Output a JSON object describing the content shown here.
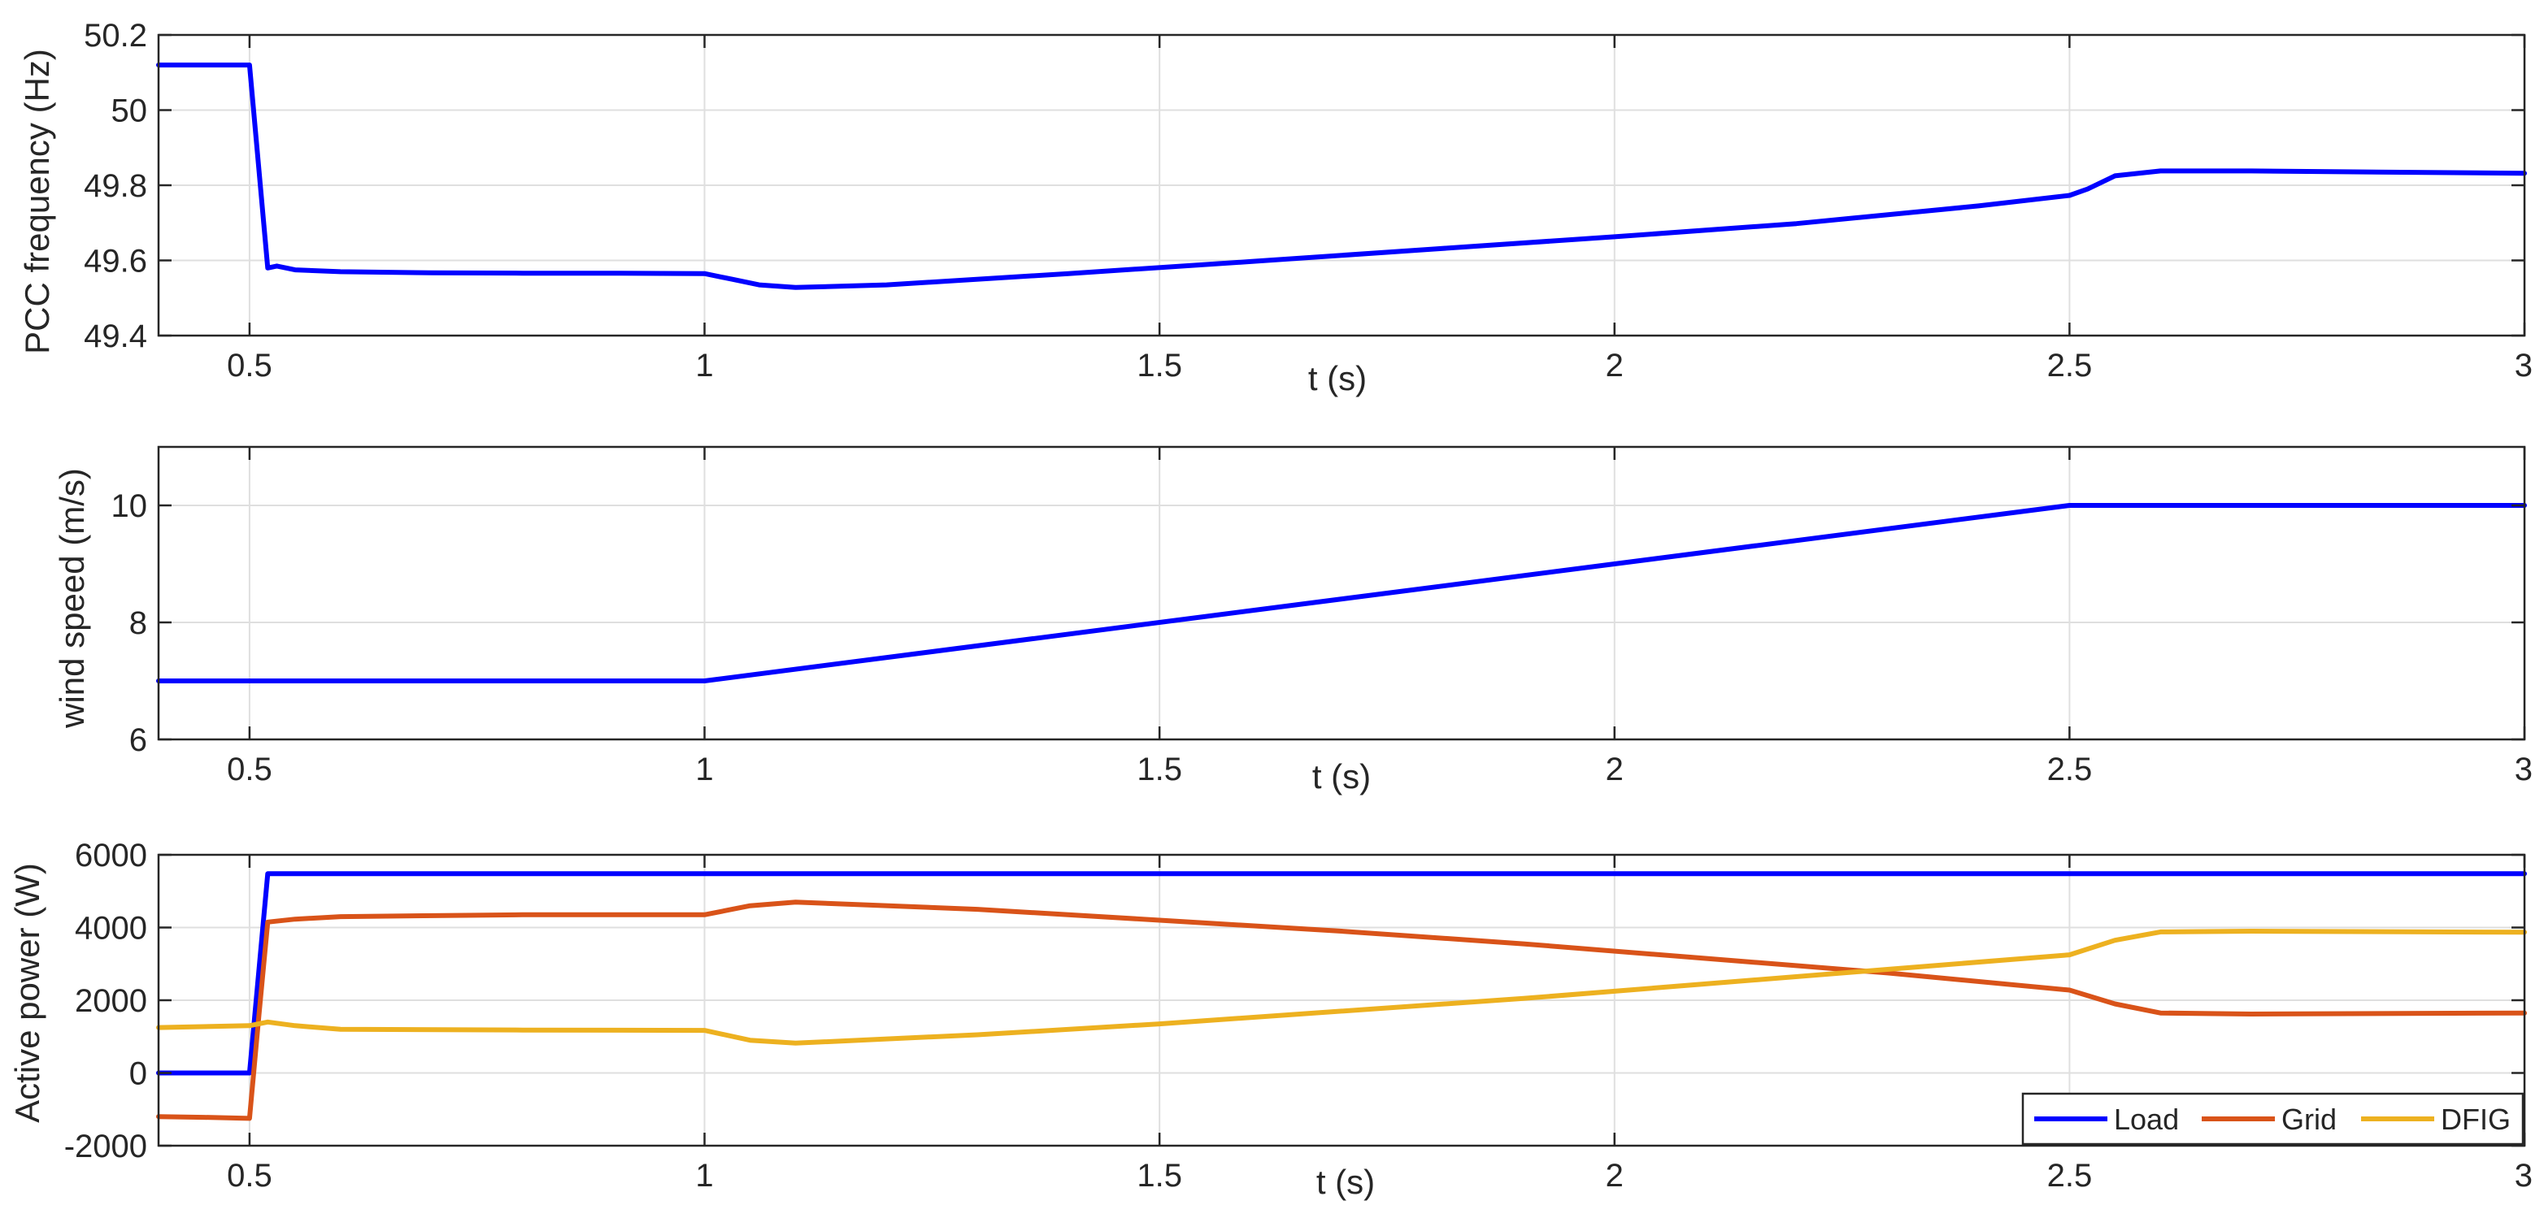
{
  "chart_data": [
    {
      "type": "line",
      "xlabel": "t (s)",
      "ylabel": "PCC frequency (Hz)",
      "xlim": [
        0.4,
        3
      ],
      "ylim": [
        49.4,
        50.2
      ],
      "xticks": [
        0.5,
        1,
        1.5,
        2,
        2.5,
        3
      ],
      "xtick_labels": [
        "0.5",
        "1",
        "1.5",
        "2",
        "2.5",
        "3"
      ],
      "yticks": [
        49.4,
        49.6,
        49.8,
        50,
        50.2
      ],
      "ytick_labels": [
        "49.4",
        "49.6",
        "49.8",
        "50",
        "50.2"
      ],
      "grid": true,
      "series": [
        {
          "color": "#0000ff",
          "x": [
            0.4,
            0.5,
            0.51,
            0.52,
            0.53,
            0.55,
            0.6,
            0.7,
            0.8,
            0.9,
            1.0,
            1.03,
            1.06,
            1.1,
            1.2,
            1.4,
            1.6,
            1.8,
            2.0,
            2.2,
            2.4,
            2.5,
            2.52,
            2.55,
            2.6,
            2.7,
            2.8,
            3.0
          ],
          "y": [
            50.12,
            50.12,
            49.85,
            49.58,
            49.585,
            49.575,
            49.57,
            49.567,
            49.566,
            49.566,
            49.565,
            49.55,
            49.535,
            49.528,
            49.535,
            49.565,
            49.597,
            49.63,
            49.663,
            49.698,
            49.745,
            49.773,
            49.79,
            49.825,
            49.838,
            49.838,
            49.836,
            49.832
          ]
        }
      ]
    },
    {
      "type": "line",
      "xlabel": "t (s)",
      "ylabel": "wind speed (m/s)",
      "xlim": [
        0.4,
        3
      ],
      "ylim": [
        6,
        11
      ],
      "xticks": [
        0.5,
        1,
        1.5,
        2,
        2.5,
        3
      ],
      "xtick_labels": [
        "0.5",
        "1",
        "1.5",
        "2",
        "2.5",
        "3"
      ],
      "yticks": [
        6,
        8,
        10
      ],
      "ytick_labels": [
        "6",
        "8",
        "10"
      ],
      "grid": true,
      "series": [
        {
          "color": "#0000ff",
          "x": [
            0.4,
            1.0,
            2.5,
            3.0
          ],
          "y": [
            7,
            7,
            10,
            10
          ]
        }
      ]
    },
    {
      "type": "line",
      "xlabel": "t (s)",
      "ylabel": "Active power (W)",
      "xlim": [
        0.4,
        3
      ],
      "ylim": [
        -2000,
        6000
      ],
      "xticks": [
        0.5,
        1,
        1.5,
        2,
        2.5,
        3
      ],
      "xtick_labels": [
        "0.5",
        "1",
        "1.5",
        "2",
        "2.5",
        "3"
      ],
      "yticks": [
        -2000,
        0,
        2000,
        4000,
        6000
      ],
      "ytick_labels": [
        "-2000",
        "0",
        "2000",
        "4000",
        "6000"
      ],
      "grid": true,
      "legend": "bottom-right",
      "series": [
        {
          "name": "Load",
          "color": "#0000ff",
          "x": [
            0.4,
            0.5,
            0.52,
            0.6,
            1.0,
            1.5,
            2.0,
            2.5,
            3.0
          ],
          "y": [
            0,
            0,
            5480,
            5480,
            5480,
            5480,
            5480,
            5480,
            5480
          ]
        },
        {
          "name": "Grid",
          "color": "#d95319",
          "x": [
            0.4,
            0.45,
            0.5,
            0.51,
            0.52,
            0.55,
            0.6,
            0.8,
            1.0,
            1.05,
            1.1,
            1.3,
            1.5,
            1.7,
            1.9,
            2.1,
            2.3,
            2.5,
            2.55,
            2.6,
            2.7,
            3.0
          ],
          "y": [
            -1200,
            -1220,
            -1250,
            1500,
            4150,
            4230,
            4300,
            4350,
            4350,
            4600,
            4700,
            4500,
            4200,
            3900,
            3550,
            3150,
            2750,
            2280,
            1900,
            1650,
            1620,
            1650
          ]
        },
        {
          "name": "DFIG",
          "color": "#edb120",
          "x": [
            0.4,
            0.5,
            0.52,
            0.55,
            0.6,
            0.8,
            1.0,
            1.05,
            1.1,
            1.3,
            1.5,
            1.7,
            1.9,
            2.1,
            2.3,
            2.5,
            2.55,
            2.6,
            2.7,
            3.0
          ],
          "y": [
            1250,
            1300,
            1400,
            1300,
            1200,
            1180,
            1170,
            900,
            820,
            1050,
            1350,
            1700,
            2050,
            2450,
            2850,
            3250,
            3650,
            3880,
            3900,
            3870
          ]
        }
      ]
    }
  ]
}
